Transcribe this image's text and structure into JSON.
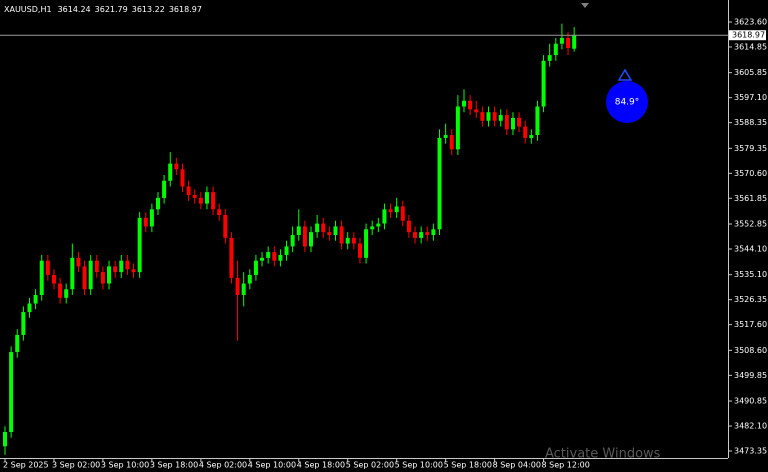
{
  "chart_data": {
    "type": "candlestick",
    "symbol": "XAUUSD,H1",
    "categories": [
      "2 Sep 2025",
      null,
      null,
      null,
      null,
      null,
      null,
      null,
      "3 Sep 02:00",
      null,
      null,
      null,
      null,
      null,
      null,
      null,
      "3 Sep 10:00",
      null,
      null,
      null,
      null,
      null,
      null,
      null,
      "3 Sep 18:00",
      null,
      null,
      null,
      null,
      null,
      null,
      null,
      "4 Sep 02:00",
      null,
      null,
      null,
      null,
      null,
      null,
      null,
      "4 Sep 10:00",
      null,
      null,
      null,
      null,
      null,
      null,
      null,
      "4 Sep 18:00",
      null,
      null,
      null,
      null,
      null,
      null,
      null,
      "5 Sep 02:00",
      null,
      null,
      null,
      null,
      null,
      null,
      null,
      "5 Sep 10:00",
      null,
      null,
      null,
      null,
      null,
      null,
      null,
      "5 Sep 18:00",
      null,
      null,
      null,
      null,
      null,
      null,
      null,
      "8 Sep 04:00",
      null,
      null,
      null,
      null,
      null,
      null,
      null,
      "8 Sep 12:00",
      null,
      null,
      null,
      null,
      null
    ],
    "open": [
      3475,
      3480,
      3508,
      3514,
      3522,
      3525,
      3528,
      3540,
      3535,
      3532,
      3527,
      3530,
      3541,
      3538,
      3530,
      3540,
      3536,
      3532,
      3538,
      3536,
      3540,
      3537,
      3536,
      3555,
      3552,
      3558,
      3562,
      3568,
      3574,
      3572,
      3566,
      3563,
      3562,
      3560,
      3564,
      3558,
      3556,
      3548,
      3534,
      3528,
      3532,
      3535,
      3540,
      3541,
      3543,
      3540,
      3542,
      3545,
      3549,
      3552,
      3545,
      3550,
      3553,
      3550,
      3549,
      3552,
      3546,
      3548,
      3546,
      3541,
      3551,
      3552,
      3553,
      3558,
      3557,
      3559,
      3554,
      3550,
      3548,
      3550,
      3549,
      3551,
      3583,
      3584,
      3579,
      3594,
      3596,
      3593,
      3592,
      3589,
      3592,
      3589,
      3591,
      3586,
      3590,
      3587,
      3583,
      3584,
      3594,
      3610,
      3612,
      3616,
      3618,
      3614.24
    ],
    "high": [
      3482,
      3510,
      3516,
      3524,
      3527,
      3530,
      3542,
      3542,
      3537,
      3534,
      3532,
      3546,
      3543,
      3540,
      3542,
      3542,
      3538,
      3540,
      3540,
      3542,
      3542,
      3539,
      3557,
      3557,
      3560,
      3564,
      3570,
      3578,
      3576,
      3574,
      3568,
      3565,
      3564,
      3566,
      3566,
      3560,
      3558,
      3550,
      3540,
      3536,
      3537,
      3542,
      3543,
      3545,
      3545,
      3544,
      3547,
      3552,
      3558,
      3554,
      3552,
      3556,
      3555,
      3552,
      3554,
      3554,
      3550,
      3550,
      3548,
      3553,
      3554,
      3555,
      3560,
      3560,
      3562,
      3561,
      3556,
      3552,
      3552,
      3552,
      3553,
      3586,
      3588,
      3586,
      3598,
      3600,
      3598,
      3596,
      3594,
      3594,
      3594,
      3593,
      3593,
      3592,
      3592,
      3589,
      3586,
      3596,
      3612,
      3616,
      3618,
      3623,
      3620,
      3621.79
    ],
    "low": [
      3472,
      3478,
      3506,
      3512,
      3520,
      3523,
      3526,
      3533,
      3530,
      3525,
      3525,
      3528,
      3536,
      3528,
      3528,
      3534,
      3530,
      3530,
      3534,
      3534,
      3535,
      3534,
      3534,
      3550,
      3550,
      3556,
      3560,
      3566,
      3570,
      3564,
      3561,
      3560,
      3558,
      3558,
      3556,
      3554,
      3546,
      3532,
      3512,
      3524,
      3530,
      3533,
      3538,
      3539,
      3538,
      3538,
      3540,
      3543,
      3547,
      3543,
      3543,
      3548,
      3548,
      3547,
      3547,
      3544,
      3544,
      3544,
      3539,
      3539,
      3549,
      3550,
      3551,
      3555,
      3555,
      3552,
      3548,
      3546,
      3546,
      3547,
      3547,
      3549,
      3581,
      3577,
      3577,
      3592,
      3591,
      3590,
      3587,
      3587,
      3587,
      3587,
      3584,
      3584,
      3585,
      3581,
      3581,
      3582,
      3592,
      3608,
      3610,
      3614,
      3612,
      3613.22
    ],
    "close": [
      3480,
      3508,
      3514,
      3522,
      3525,
      3528,
      3540,
      3535,
      3532,
      3527,
      3530,
      3541,
      3538,
      3530,
      3540,
      3536,
      3532,
      3538,
      3536,
      3540,
      3537,
      3536,
      3555,
      3552,
      3558,
      3562,
      3568,
      3574,
      3572,
      3566,
      3563,
      3562,
      3560,
      3564,
      3558,
      3556,
      3548,
      3534,
      3528,
      3532,
      3535,
      3540,
      3541,
      3543,
      3540,
      3542,
      3545,
      3549,
      3552,
      3545,
      3550,
      3553,
      3550,
      3549,
      3552,
      3546,
      3548,
      3546,
      3541,
      3551,
      3552,
      3553,
      3558,
      3557,
      3559,
      3554,
      3550,
      3548,
      3550,
      3549,
      3551,
      3583,
      3584,
      3579,
      3594,
      3596,
      3593,
      3592,
      3589,
      3592,
      3589,
      3591,
      3586,
      3590,
      3587,
      3583,
      3584,
      3594,
      3610,
      3612,
      3616,
      3618,
      3614.5,
      3618.97
    ],
    "up_color": "#00ff00",
    "down_color": "#ff0000",
    "ylim": [
      3470.9,
      3631.3
    ],
    "yticks": [
      {
        "value": 3623.6,
        "label": "3623.60"
      },
      3614.85,
      3605.85,
      {
        "value": 3597.1,
        "label": "3597.10"
      },
      3588.35,
      3579.35,
      {
        "value": 3570.6,
        "label": "3570.60"
      },
      3561.85,
      3552.85,
      {
        "value": 3544.1,
        "label": "3544.10"
      },
      {
        "value": 3535.1,
        "label": "3535.10"
      },
      3526.35,
      {
        "value": 3517.6,
        "label": "3517.60"
      },
      {
        "value": 3508.6,
        "label": "3508.60"
      },
      3499.85,
      3490.85,
      {
        "value": 3482.1,
        "label": "3482.10"
      },
      3473.35
    ],
    "annotation": "84.9°",
    "watermark": "Activate Windows"
  }
}
